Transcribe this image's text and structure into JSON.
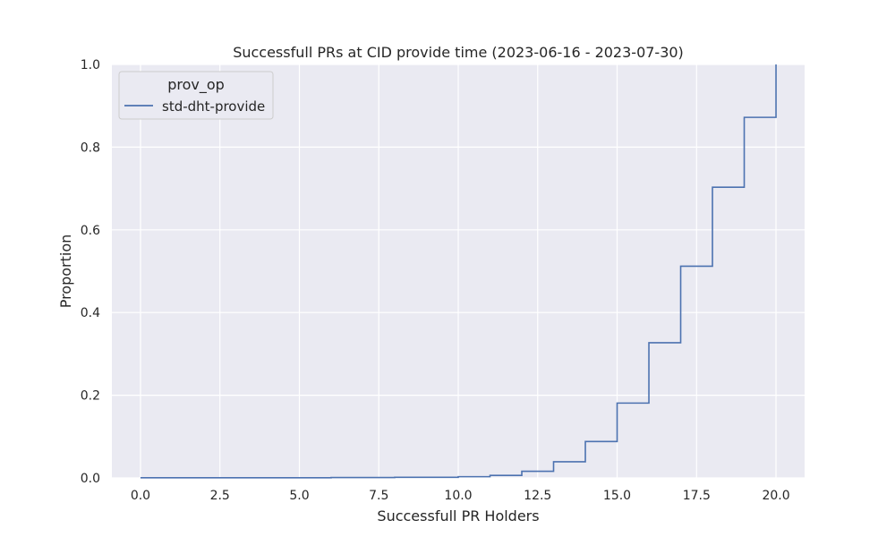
{
  "chart_data": {
    "type": "line",
    "subtype": "ecdf-step",
    "title": "Successfull PRs at CID provide time (2023-06-16 - 2023-07-30)",
    "xlabel": "Successfull PR Holders",
    "ylabel": "Proportion",
    "xlim": [
      -0.9,
      20.9
    ],
    "ylim": [
      0.0,
      1.0
    ],
    "xticks": [
      0,
      2.5,
      5,
      7.5,
      10,
      12.5,
      15,
      17.5,
      20
    ],
    "xtick_labels": [
      "0.0",
      "2.5",
      "5.0",
      "7.5",
      "10.0",
      "12.5",
      "15.0",
      "17.5",
      "20.0"
    ],
    "yticks": [
      0,
      0.2,
      0.4,
      0.6,
      0.8,
      1.0
    ],
    "ytick_labels": [
      "0.0",
      "0.2",
      "0.4",
      "0.6",
      "0.8",
      "1.0"
    ],
    "grid": true,
    "legend": {
      "title": "prov_op",
      "placement": "top-left"
    },
    "series": [
      {
        "name": "std-dht-provide",
        "color": "#4c72b0",
        "x": [
          0,
          6,
          8,
          10,
          11,
          12,
          13,
          14,
          15,
          16,
          17,
          18,
          19,
          20
        ],
        "y": [
          0.0005,
          0.001,
          0.0015,
          0.003,
          0.006,
          0.016,
          0.039,
          0.088,
          0.181,
          0.327,
          0.512,
          0.703,
          0.872,
          1.0
        ]
      }
    ]
  },
  "colors": {
    "plot_bg": "#eaeaf2",
    "grid": "#ffffff",
    "line": "#4c72b0"
  }
}
